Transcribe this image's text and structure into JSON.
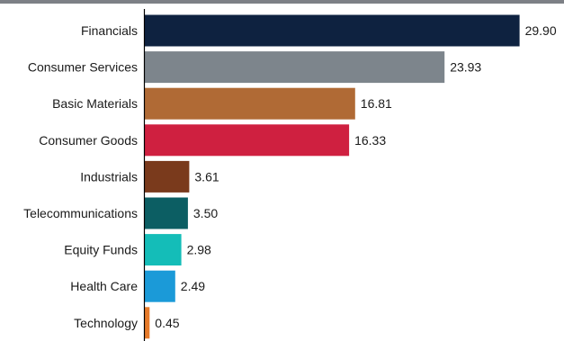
{
  "chart_data": {
    "type": "bar",
    "orientation": "horizontal",
    "categories": [
      "Financials",
      "Consumer Services",
      "Basic Materials",
      "Consumer Goods",
      "Industrials",
      "Telecommunications",
      "Equity Funds",
      "Health Care",
      "Technology"
    ],
    "values": [
      29.9,
      23.93,
      16.81,
      16.33,
      3.61,
      3.5,
      2.98,
      2.49,
      0.45
    ],
    "value_labels": [
      "29.90",
      "23.93",
      "16.81",
      "16.33",
      "3.61",
      "3.50",
      "2.98",
      "2.49",
      "0.45"
    ],
    "colors": [
      "#0e2240",
      "#7d858c",
      "#b06a35",
      "#cf2040",
      "#7a3a1c",
      "#0c5e63",
      "#14bdb8",
      "#1b9ad8",
      "#e77b2b"
    ],
    "xlim": [
      0,
      30
    ],
    "grid": false,
    "legend": "none",
    "title": "",
    "xlabel": "",
    "ylabel": ""
  }
}
